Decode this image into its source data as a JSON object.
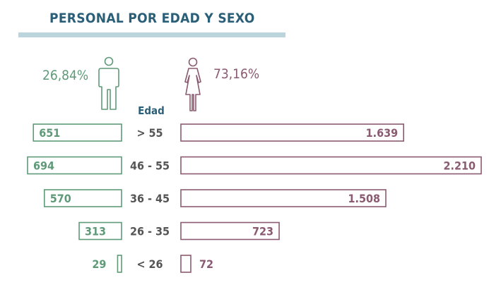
{
  "title": "PERSONAL POR EDAD Y SEXO",
  "male_pct": "26,84%",
  "female_pct": "73,16%",
  "colors": {
    "title": "#2b5f78",
    "rule": "#bcd4dc",
    "male": "#5f9a78",
    "female": "#8a5a70",
    "category": "#555555"
  },
  "icons": {
    "male": "man-figure-icon",
    "female": "woman-figure-icon"
  },
  "chart_data": {
    "type": "bar",
    "xlabel": "Edad",
    "categories": [
      "> 55",
      "46 - 55",
      "36 - 45",
      "26 - 35",
      "< 26"
    ],
    "series": [
      {
        "values": [
          651,
          694,
          570,
          313,
          29
        ],
        "labels": [
          "651",
          "694",
          "570",
          "313",
          "29"
        ]
      },
      {
        "values": [
          1639,
          2210,
          1508,
          723,
          72
        ],
        "labels": [
          "1.639",
          "2.210",
          "1.508",
          "723",
          "72"
        ]
      }
    ]
  }
}
